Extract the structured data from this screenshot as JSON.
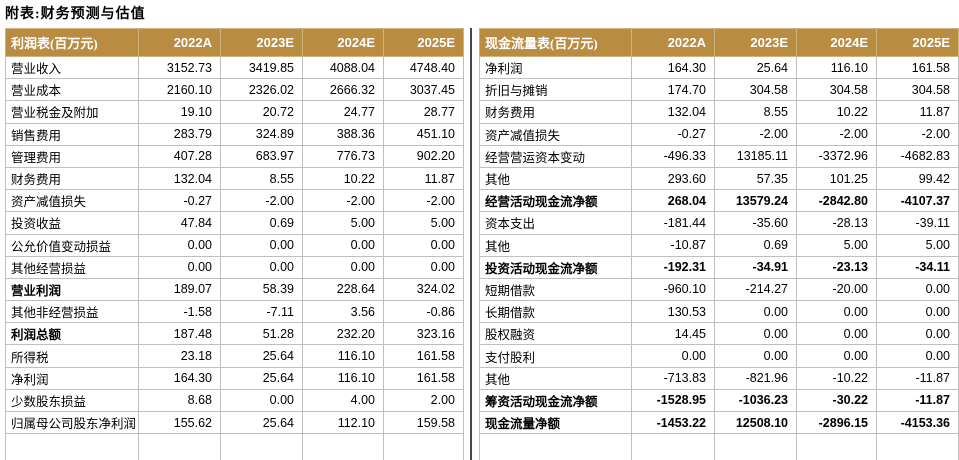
{
  "title": "附表:财务预测与估值",
  "colors": {
    "header_bg": "#B98C42",
    "header_text": "#FFFFFF",
    "grid_border": "#BFBFBF",
    "divider": "#474747",
    "text": "#000000"
  },
  "income_table": {
    "title": "利润表(百万元)",
    "columns": [
      "2022A",
      "2023E",
      "2024E",
      "2025E"
    ],
    "rows": [
      {
        "label": "营业收入",
        "values": [
          "3152.73",
          "3419.85",
          "4088.04",
          "4748.40"
        ],
        "bold": false
      },
      {
        "label": "营业成本",
        "values": [
          "2160.10",
          "2326.02",
          "2666.32",
          "3037.45"
        ],
        "bold": false
      },
      {
        "label": "营业税金及附加",
        "values": [
          "19.10",
          "20.72",
          "24.77",
          "28.77"
        ],
        "bold": false
      },
      {
        "label": "销售费用",
        "values": [
          "283.79",
          "324.89",
          "388.36",
          "451.10"
        ],
        "bold": false
      },
      {
        "label": "管理费用",
        "values": [
          "407.28",
          "683.97",
          "776.73",
          "902.20"
        ],
        "bold": false
      },
      {
        "label": "财务费用",
        "values": [
          "132.04",
          "8.55",
          "10.22",
          "11.87"
        ],
        "bold": false
      },
      {
        "label": "资产减值损失",
        "values": [
          "-0.27",
          "-2.00",
          "-2.00",
          "-2.00"
        ],
        "bold": false
      },
      {
        "label": "投资收益",
        "values": [
          "47.84",
          "0.69",
          "5.00",
          "5.00"
        ],
        "bold": false
      },
      {
        "label": "公允价值变动损益",
        "values": [
          "0.00",
          "0.00",
          "0.00",
          "0.00"
        ],
        "bold": false
      },
      {
        "label": "其他经营损益",
        "values": [
          "0.00",
          "0.00",
          "0.00",
          "0.00"
        ],
        "bold": false
      },
      {
        "label": "营业利润",
        "values": [
          "189.07",
          "58.39",
          "228.64",
          "324.02"
        ],
        "bold": true
      },
      {
        "label": "其他非经营损益",
        "values": [
          "-1.58",
          "-7.11",
          "3.56",
          "-0.86"
        ],
        "bold": false
      },
      {
        "label": "利润总额",
        "values": [
          "187.48",
          "51.28",
          "232.20",
          "323.16"
        ],
        "bold": true
      },
      {
        "label": "所得税",
        "values": [
          "23.18",
          "25.64",
          "116.10",
          "161.58"
        ],
        "bold": false
      },
      {
        "label": "净利润",
        "values": [
          "164.30",
          "25.64",
          "116.10",
          "161.58"
        ],
        "bold": false
      },
      {
        "label": "少数股东损益",
        "values": [
          "8.68",
          "0.00",
          "4.00",
          "2.00"
        ],
        "bold": false
      },
      {
        "label": "归属母公司股东净利润",
        "values": [
          "155.62",
          "25.64",
          "112.10",
          "159.58"
        ],
        "bold": false
      }
    ]
  },
  "cashflow_table": {
    "title": "现金流量表(百万元)",
    "columns": [
      "2022A",
      "2023E",
      "2024E",
      "2025E"
    ],
    "rows": [
      {
        "label": "净利润",
        "values": [
          "164.30",
          "25.64",
          "116.10",
          "161.58"
        ],
        "bold": false
      },
      {
        "label": "折旧与摊销",
        "values": [
          "174.70",
          "304.58",
          "304.58",
          "304.58"
        ],
        "bold": false
      },
      {
        "label": "财务费用",
        "values": [
          "132.04",
          "8.55",
          "10.22",
          "11.87"
        ],
        "bold": false
      },
      {
        "label": "资产减值损失",
        "values": [
          "-0.27",
          "-2.00",
          "-2.00",
          "-2.00"
        ],
        "bold": false
      },
      {
        "label": "经营营运资本变动",
        "values": [
          "-496.33",
          "13185.11",
          "-3372.96",
          "-4682.83"
        ],
        "bold": false
      },
      {
        "label": "其他",
        "values": [
          "293.60",
          "57.35",
          "101.25",
          "99.42"
        ],
        "bold": false
      },
      {
        "label": "经营活动现金流净额",
        "values": [
          "268.04",
          "13579.24",
          "-2842.80",
          "-4107.37"
        ],
        "bold": true
      },
      {
        "label": "资本支出",
        "values": [
          "-181.44",
          "-35.60",
          "-28.13",
          "-39.11"
        ],
        "bold": false
      },
      {
        "label": "其他",
        "values": [
          "-10.87",
          "0.69",
          "5.00",
          "5.00"
        ],
        "bold": false
      },
      {
        "label": "投资活动现金流净额",
        "values": [
          "-192.31",
          "-34.91",
          "-23.13",
          "-34.11"
        ],
        "bold": true
      },
      {
        "label": "短期借款",
        "values": [
          "-960.10",
          "-214.27",
          "-20.00",
          "0.00"
        ],
        "bold": false
      },
      {
        "label": "长期借款",
        "values": [
          "130.53",
          "0.00",
          "0.00",
          "0.00"
        ],
        "bold": false
      },
      {
        "label": "股权融资",
        "values": [
          "14.45",
          "0.00",
          "0.00",
          "0.00"
        ],
        "bold": false
      },
      {
        "label": "支付股利",
        "values": [
          "0.00",
          "0.00",
          "0.00",
          "0.00"
        ],
        "bold": false
      },
      {
        "label": "其他",
        "values": [
          "-713.83",
          "-821.96",
          "-10.22",
          "-11.87"
        ],
        "bold": false
      },
      {
        "label": "筹资活动现金流净额",
        "values": [
          "-1528.95",
          "-1036.23",
          "-30.22",
          "-11.87"
        ],
        "bold": true
      },
      {
        "label": "现金流量净额",
        "values": [
          "-1453.22",
          "12508.10",
          "-2896.15",
          "-4153.36"
        ],
        "bold": true
      }
    ]
  }
}
